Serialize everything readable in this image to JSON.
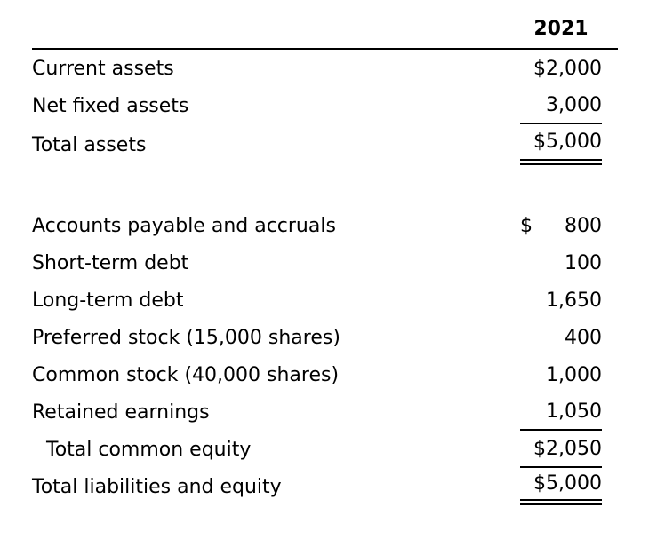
{
  "colors": {
    "text": "#000000",
    "background": "#ffffff",
    "rule": "#000000"
  },
  "table": {
    "header": {
      "year": "2021"
    },
    "sections": [
      {
        "name": "assets",
        "rows": [
          {
            "label": "Current assets",
            "prefix": "",
            "amount": "$2,000",
            "underline": "none"
          },
          {
            "label": "Net fixed assets",
            "prefix": "",
            "amount": "3,000",
            "underline": "single"
          },
          {
            "label": "Total assets",
            "prefix": "",
            "amount": "$5,000",
            "underline": "double"
          }
        ]
      },
      {
        "name": "liabilities-and-equity",
        "rows": [
          {
            "label": "Accounts payable and accruals",
            "prefix": "$",
            "amount": "800",
            "underline": "none"
          },
          {
            "label": "Short-term debt",
            "prefix": "",
            "amount": "100",
            "underline": "none"
          },
          {
            "label": "Long-term debt",
            "prefix": "",
            "amount": "1,650",
            "underline": "none"
          },
          {
            "label": "Preferred stock (15,000 shares)",
            "prefix": "",
            "amount": "400",
            "underline": "none"
          },
          {
            "label": "Common stock (40,000 shares)",
            "prefix": "",
            "amount": "1,000",
            "underline": "none"
          },
          {
            "label": "Retained earnings",
            "prefix": "",
            "amount": "1,050",
            "underline": "single"
          },
          {
            "label": "Total common equity",
            "prefix": "",
            "amount": "$2,050",
            "underline": "single"
          },
          {
            "label": "Total liabilities and equity",
            "prefix": "",
            "amount": "$5,000",
            "underline": "double"
          }
        ]
      }
    ]
  }
}
